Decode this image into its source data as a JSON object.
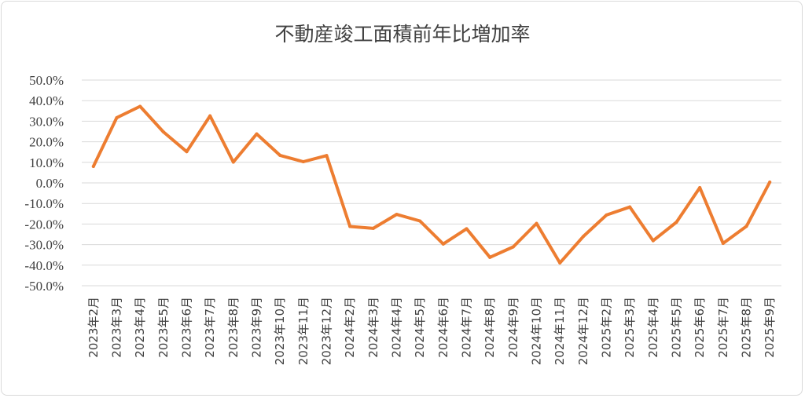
{
  "chart_data": {
    "type": "line",
    "title": "不動産竣工面積前年比増加率",
    "xlabel": "",
    "ylabel": "",
    "ylim": [
      -50,
      50
    ],
    "y_ticks": [
      "50.0%",
      "40.0%",
      "30.0%",
      "20.0%",
      "10.0%",
      "0.0%",
      "-10.0%",
      "-20.0%",
      "-30.0%",
      "-40.0%",
      "-50.0%"
    ],
    "grid": true,
    "legend": "none",
    "categories": [
      "2023年2月",
      "2023年3月",
      "2023年4月",
      "2023年5月",
      "2023年6月",
      "2023年7月",
      "2023年8月",
      "2023年9月",
      "2023年10月",
      "2023年11月",
      "2023年12月",
      "2024年2月",
      "2024年3月",
      "2024年4月",
      "2024年5月",
      "2024年6月",
      "2024年7月",
      "2024年8月",
      "2024年9月",
      "2024年10月",
      "2024年11月",
      "2024年12月",
      "2025年2月",
      "2025年3月",
      "2025年4月",
      "2025年5月",
      "2025年6月",
      "2025年7月",
      "2025年8月",
      "2025年9月"
    ],
    "series": [
      {
        "values": [
          8.0,
          31.7,
          37.2,
          24.8,
          15.2,
          32.6,
          10.1,
          23.8,
          13.4,
          10.3,
          13.3,
          -21.2,
          -22.1,
          -15.3,
          -18.5,
          -29.7,
          -22.3,
          -36.2,
          -31.1,
          -19.7,
          -38.9,
          -26.1,
          -15.6,
          -11.7,
          -28.1,
          -19.1,
          -2.3,
          -29.4,
          -21.1,
          0.4
        ],
        "color": "#ed7d31"
      }
    ]
  }
}
